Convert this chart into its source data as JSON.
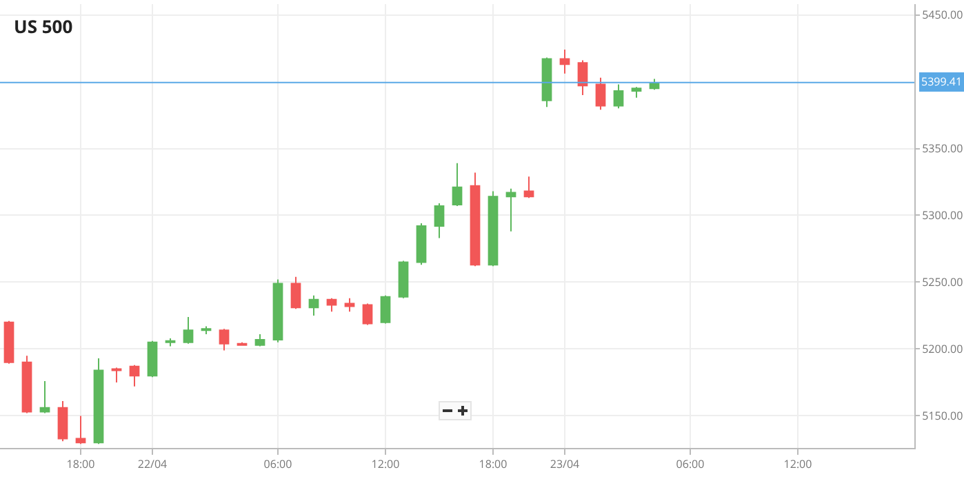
{
  "chart_data": {
    "type": "candlestick",
    "title": "US 500",
    "categories": [
      null,
      null,
      null,
      null,
      "18:00",
      null,
      null,
      null,
      "22/04",
      null,
      null,
      null,
      null,
      null,
      null,
      "06:00",
      null,
      null,
      null,
      null,
      null,
      "12:00",
      null,
      null,
      null,
      null,
      null,
      "18:00",
      null,
      null,
      null,
      "23/04",
      null,
      null,
      null,
      null,
      null,
      null,
      "06:00",
      null,
      null,
      null,
      null,
      null,
      "12:00",
      null,
      null,
      null,
      null,
      null,
      null
    ],
    "ohlc": [
      [
        5220,
        5221,
        5189,
        5190
      ],
      [
        5190,
        5195,
        5152,
        5153
      ],
      [
        5153,
        5176,
        5152,
        5156
      ],
      [
        5156,
        5161,
        5131,
        5133
      ],
      [
        5133,
        5150,
        5129,
        5130
      ],
      [
        5130,
        5193,
        5129,
        5184
      ],
      [
        5185,
        5186,
        5175,
        5184
      ],
      [
        5187,
        5188,
        5172,
        5180
      ],
      [
        5180,
        5206,
        5179,
        5205
      ],
      [
        5205,
        5208,
        5202,
        5206
      ],
      [
        5205,
        5224,
        5204,
        5214
      ],
      [
        5214,
        5217,
        5211,
        5215
      ],
      [
        5214,
        5215,
        5199,
        5204
      ],
      [
        5204,
        5205,
        5203,
        5203
      ],
      [
        5203,
        5211,
        5202,
        5207
      ],
      [
        5207,
        5252,
        5205,
        5249
      ],
      [
        5249,
        5254,
        5230,
        5231
      ],
      [
        5231,
        5240,
        5225,
        5237
      ],
      [
        5237,
        5238,
        5228,
        5233
      ],
      [
        5234,
        5238,
        5228,
        5232
      ],
      [
        5233,
        5234,
        5218,
        5219
      ],
      [
        5220,
        5240,
        5219,
        5239
      ],
      [
        5239,
        5266,
        5238,
        5265
      ],
      [
        5265,
        5294,
        5263,
        5292
      ],
      [
        5292,
        5309,
        5283,
        5307
      ],
      [
        5308,
        5339,
        5307,
        5321
      ],
      [
        5322,
        5332,
        5262,
        5263
      ],
      [
        5263,
        5318,
        5262,
        5314
      ],
      [
        5314,
        5320,
        5288,
        5317
      ],
      [
        5318,
        5329,
        5313,
        5314
      ],
      [
        5386,
        5418,
        5381,
        5417
      ],
      [
        5417,
        5424,
        5406,
        5413
      ],
      [
        5414,
        5416,
        5390,
        5397
      ],
      [
        5398,
        5403,
        5379,
        5382
      ],
      [
        5382,
        5398,
        5380,
        5393
      ],
      [
        5393,
        5396,
        5388,
        5395
      ],
      [
        5395,
        5402,
        5394,
        5399
      ],
      null,
      null,
      null,
      null,
      null,
      null,
      null,
      null,
      null,
      null,
      null,
      null,
      null,
      null
    ],
    "ylim": [
      5126,
      5458
    ],
    "yticks": [
      {
        "value": 5150,
        "label": "5150.00"
      },
      {
        "value": 5200,
        "label": "5200.00"
      },
      {
        "value": 5250,
        "label": "5250.00"
      },
      {
        "value": 5300,
        "label": "5300.00"
      },
      {
        "value": 5350,
        "label": "5350.00"
      },
      {
        "value": 5450,
        "label": "5450.00"
      }
    ],
    "ref_lines": [
      {
        "axis": "y",
        "value": 5399.41,
        "label": "5399.41",
        "color": "#5aa9e6"
      }
    ],
    "grid": true
  }
}
